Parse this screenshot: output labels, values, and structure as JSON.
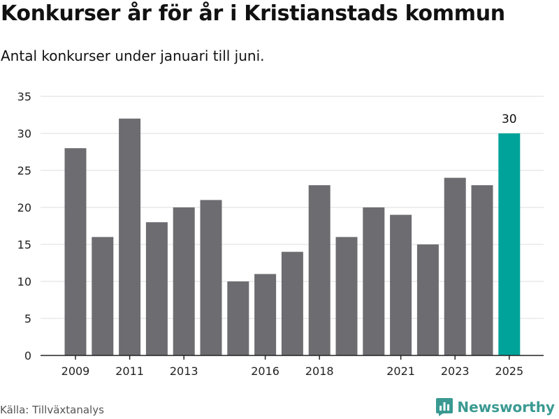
{
  "title": "Konkurser år för år i Kristianstads kommun",
  "subtitle": "Antal konkurser under januari till juni.",
  "source": "Källa: Tillväxtanalys",
  "brand": "Newsworthy",
  "colors": {
    "bar": "#6d6c71",
    "highlight": "#00a39a",
    "grid": "#dddddd",
    "axis": "#222222",
    "brand": "#3a9a92"
  },
  "chart_data": {
    "type": "bar",
    "x": [
      2009,
      2010,
      2011,
      2012,
      2013,
      2014,
      2015,
      2016,
      2017,
      2018,
      2019,
      2020,
      2021,
      2022,
      2023,
      2024,
      2025
    ],
    "values": [
      28,
      16,
      32,
      18,
      20,
      21,
      10,
      11,
      14,
      23,
      16,
      20,
      19,
      15,
      24,
      23,
      30
    ],
    "x_tick_labels": [
      "2009",
      "2011",
      "2013",
      "2016",
      "2018",
      "2021",
      "2023",
      "2025"
    ],
    "y_ticks": [
      0,
      5,
      10,
      15,
      20,
      25,
      30,
      35
    ],
    "ylim": [
      0,
      35
    ],
    "highlight": {
      "year": 2025,
      "label": "30"
    },
    "grid": true
  }
}
